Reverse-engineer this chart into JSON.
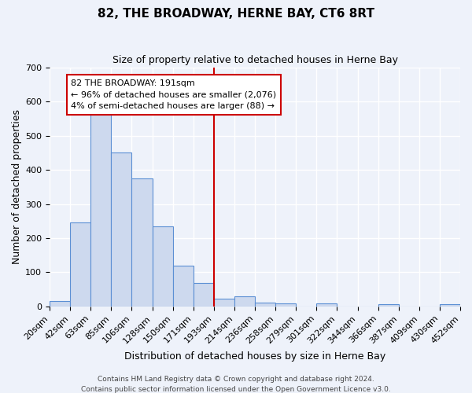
{
  "title": "82, THE BROADWAY, HERNE BAY, CT6 8RT",
  "subtitle": "Size of property relative to detached houses in Herne Bay",
  "xlabel": "Distribution of detached houses by size in Herne Bay",
  "ylabel": "Number of detached properties",
  "bar_labels": [
    "20sqm",
    "42sqm",
    "63sqm",
    "85sqm",
    "106sqm",
    "128sqm",
    "150sqm",
    "171sqm",
    "193sqm",
    "214sqm",
    "236sqm",
    "258sqm",
    "279sqm",
    "301sqm",
    "322sqm",
    "344sqm",
    "366sqm",
    "387sqm",
    "409sqm",
    "430sqm",
    "452sqm"
  ],
  "bar_heights": [
    15,
    247,
    580,
    450,
    375,
    235,
    120,
    68,
    22,
    30,
    12,
    10,
    0,
    9,
    0,
    0,
    7,
    0,
    0,
    7
  ],
  "bar_color": "#cdd9ee",
  "bar_edge_color": "#5b8fd4",
  "vline_x_idx": 8,
  "vline_color": "#cc0000",
  "annotation_lines": [
    "82 THE BROADWAY: 191sqm",
    "← 96% of detached houses are smaller (2,076)",
    "4% of semi-detached houses are larger (88) →"
  ],
  "annotation_box_color": "#cc0000",
  "ylim": [
    0,
    700
  ],
  "yticks": [
    0,
    100,
    200,
    300,
    400,
    500,
    600,
    700
  ],
  "footer_lines": [
    "Contains HM Land Registry data © Crown copyright and database right 2024.",
    "Contains public sector information licensed under the Open Government Licence v3.0."
  ],
  "background_color": "#eef2fa",
  "grid_color": "#ffffff",
  "title_fontsize": 11,
  "subtitle_fontsize": 9,
  "tick_fontsize": 8,
  "ylabel_fontsize": 9,
  "xlabel_fontsize": 9,
  "annotation_fontsize": 8,
  "footer_fontsize": 6.5
}
